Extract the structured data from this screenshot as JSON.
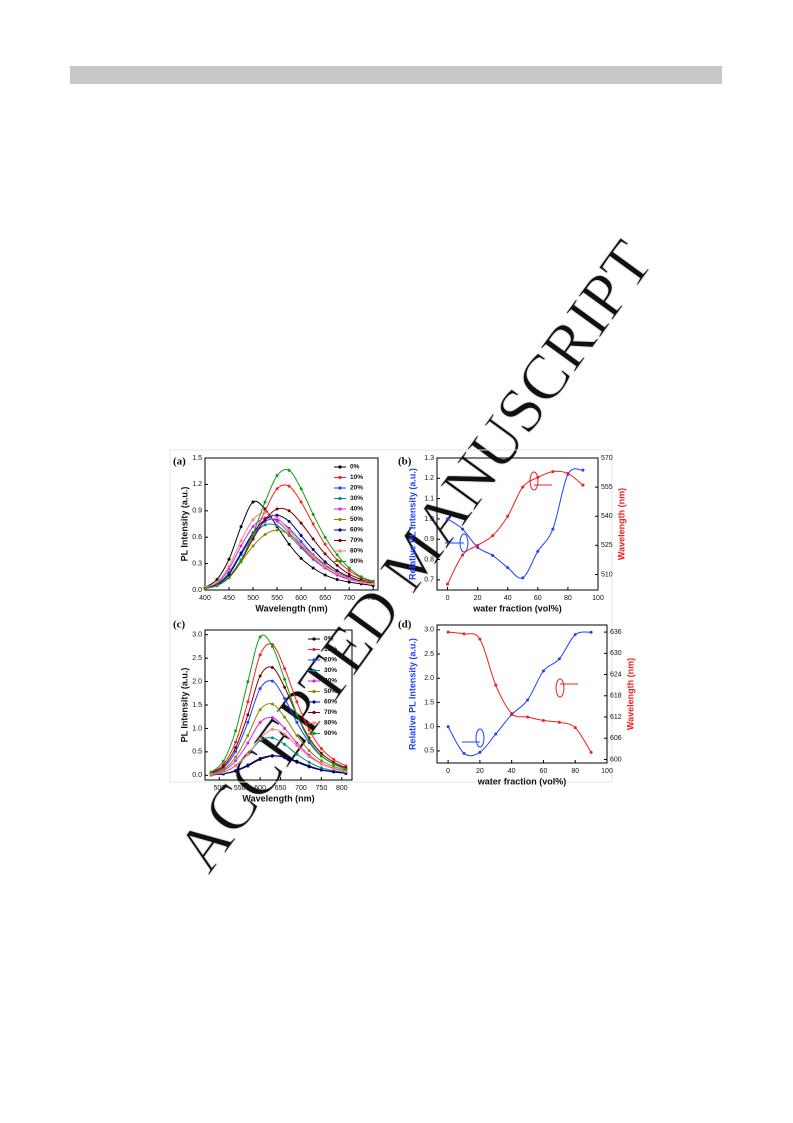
{
  "watermark": "ACCEPTED MANUSCRIPT",
  "chart_data": [
    {
      "type": "line",
      "label": "(a)",
      "x_label": "Wavelength (nm)",
      "y_label": "PL Intensity (a.u.)",
      "x": [
        400,
        425,
        450,
        475,
        500,
        525,
        550,
        575,
        600,
        625,
        650,
        675,
        700,
        725,
        750
      ],
      "xlim": [
        400,
        760
      ],
      "xticks": [
        400,
        450,
        500,
        550,
        600,
        650,
        700,
        750
      ],
      "ylim": [
        0,
        1.5
      ],
      "yticks": [
        {
          "value": 0,
          "label": "0.0"
        },
        0.3,
        0.6,
        0.9,
        1.2,
        1.5
      ],
      "series": [
        {
          "name": "0%",
          "color": "#000000",
          "values": [
            0.03,
            0.12,
            0.35,
            0.72,
            1.0,
            0.92,
            0.72,
            0.52,
            0.36,
            0.25,
            0.17,
            0.12,
            0.09,
            0.07,
            0.05
          ]
        },
        {
          "name": "10%",
          "color": "#ff2020",
          "values": [
            0.02,
            0.05,
            0.14,
            0.32,
            0.6,
            0.9,
            1.15,
            1.18,
            1.0,
            0.75,
            0.52,
            0.34,
            0.22,
            0.14,
            0.09
          ]
        },
        {
          "name": "20%",
          "color": "#1f3fff",
          "values": [
            0.02,
            0.06,
            0.18,
            0.4,
            0.62,
            0.78,
            0.8,
            0.7,
            0.55,
            0.4,
            0.28,
            0.19,
            0.13,
            0.09,
            0.07
          ]
        },
        {
          "name": "30%",
          "color": "#008b8b",
          "values": [
            0.02,
            0.07,
            0.2,
            0.42,
            0.62,
            0.74,
            0.73,
            0.62,
            0.48,
            0.35,
            0.25,
            0.17,
            0.12,
            0.09,
            0.07
          ]
        },
        {
          "name": "40%",
          "color": "#e020e0",
          "values": [
            0.03,
            0.08,
            0.24,
            0.5,
            0.72,
            0.82,
            0.78,
            0.65,
            0.5,
            0.36,
            0.25,
            0.17,
            0.12,
            0.09,
            0.07
          ]
        },
        {
          "name": "50%",
          "color": "#8b8b00",
          "values": [
            0.02,
            0.05,
            0.14,
            0.32,
            0.5,
            0.63,
            0.68,
            0.63,
            0.52,
            0.4,
            0.29,
            0.2,
            0.14,
            0.1,
            0.07
          ]
        },
        {
          "name": "60%",
          "color": "#000080",
          "values": [
            0.02,
            0.06,
            0.18,
            0.42,
            0.65,
            0.8,
            0.85,
            0.78,
            0.62,
            0.46,
            0.32,
            0.22,
            0.15,
            0.1,
            0.07
          ]
        },
        {
          "name": "70%",
          "color": "#800000",
          "values": [
            0.02,
            0.05,
            0.15,
            0.34,
            0.58,
            0.8,
            0.92,
            0.9,
            0.76,
            0.58,
            0.41,
            0.28,
            0.18,
            0.12,
            0.08
          ]
        },
        {
          "name": "80%",
          "color": "#ff7f7f",
          "values": [
            0.03,
            0.09,
            0.27,
            0.56,
            0.8,
            0.88,
            0.82,
            0.68,
            0.52,
            0.38,
            0.27,
            0.19,
            0.13,
            0.09,
            0.07
          ]
        },
        {
          "name": "90%",
          "color": "#10a010",
          "values": [
            0.02,
            0.05,
            0.14,
            0.34,
            0.64,
            1.0,
            1.3,
            1.36,
            1.15,
            0.86,
            0.6,
            0.4,
            0.25,
            0.15,
            0.1
          ]
        }
      ]
    },
    {
      "type": "line",
      "label": "(b)",
      "x_label": "water fraction (vol%)",
      "y_label": "Relative PL Intensity (a.u.)",
      "y2_label": "Wavelength (nm)",
      "x": [
        0,
        10,
        20,
        30,
        40,
        50,
        60,
        70,
        80,
        90
      ],
      "xlim": [
        -7,
        100
      ],
      "xticks": [
        0,
        20,
        40,
        60,
        80,
        100
      ],
      "ylim": [
        0.65,
        1.3
      ],
      "yticks": [
        0.7,
        0.8,
        0.9,
        {
          "value": 1,
          "label": "1.0"
        },
        1.1,
        1.2,
        1.3
      ],
      "y2lim": [
        502,
        570
      ],
      "y2ticks": [
        510,
        525,
        540,
        555,
        570
      ],
      "series": [
        {
          "color": "#1f3fff",
          "values": [
            1.0,
            0.95,
            0.86,
            0.82,
            0.76,
            0.71,
            0.84,
            0.95,
            1.22,
            1.24
          ]
        },
        {
          "color": "#ee2020",
          "axis": "y2",
          "values": [
            505,
            520,
            525,
            530,
            540,
            555,
            560,
            563,
            562,
            556
          ]
        }
      ]
    },
    {
      "type": "line",
      "label": "(c)",
      "x_label": "Wavelength (nm)",
      "y_label": "PL Intensity (a.u.)",
      "x": [
        480,
        510,
        540,
        570,
        600,
        630,
        660,
        690,
        720,
        750,
        780,
        810
      ],
      "xlim": [
        465,
        825
      ],
      "xticks": [
        500,
        550,
        600,
        650,
        700,
        750,
        800
      ],
      "ylim": [
        -0.1,
        3.1
      ],
      "yticks": [
        {
          "value": 0,
          "label": "0.0"
        },
        0.5,
        {
          "value": 1,
          "label": "1.0"
        },
        1.5,
        {
          "value": 2,
          "label": "2.0"
        },
        2.5,
        {
          "value": 3,
          "label": "3.0"
        }
      ],
      "series": [
        {
          "name": "0%",
          "color": "#000000",
          "values": [
            0.01,
            0.03,
            0.09,
            0.2,
            0.34,
            0.41,
            0.39,
            0.3,
            0.2,
            0.12,
            0.08,
            0.05
          ]
        },
        {
          "name": "10%",
          "color": "#ff2020",
          "values": [
            0.06,
            0.23,
            0.71,
            1.57,
            2.57,
            2.79,
            2.28,
            1.57,
            0.97,
            0.57,
            0.34,
            0.2
          ]
        },
        {
          "name": "20%",
          "color": "#1f3fff",
          "values": [
            0.04,
            0.16,
            0.51,
            1.13,
            1.85,
            2.01,
            1.64,
            1.13,
            0.7,
            0.41,
            0.25,
            0.14
          ]
        },
        {
          "name": "30%",
          "color": "#008b8b",
          "values": [
            0.02,
            0.07,
            0.21,
            0.45,
            0.74,
            0.8,
            0.66,
            0.45,
            0.28,
            0.16,
            0.1,
            0.06
          ]
        },
        {
          "name": "40%",
          "color": "#e020e0",
          "values": [
            0.03,
            0.1,
            0.31,
            0.69,
            1.13,
            1.23,
            1.0,
            0.69,
            0.43,
            0.25,
            0.15,
            0.09
          ]
        },
        {
          "name": "50%",
          "color": "#8b8b00",
          "values": [
            0.03,
            0.12,
            0.39,
            0.85,
            1.4,
            1.52,
            1.24,
            0.85,
            0.53,
            0.31,
            0.19,
            0.11
          ]
        },
        {
          "name": "60%",
          "color": "#000080",
          "values": [
            0.01,
            0.03,
            0.1,
            0.22,
            0.36,
            0.42,
            0.38,
            0.28,
            0.18,
            0.11,
            0.07,
            0.04
          ]
        },
        {
          "name": "70%",
          "color": "#800000",
          "values": [
            0.05,
            0.19,
            0.59,
            1.29,
            2.12,
            2.3,
            1.88,
            1.29,
            0.8,
            0.47,
            0.28,
            0.16
          ]
        },
        {
          "name": "80%",
          "color": "#ff7f7f",
          "values": [
            0.02,
            0.06,
            0.2,
            0.45,
            0.78,
            0.98,
            0.88,
            0.63,
            0.4,
            0.24,
            0.14,
            0.08
          ]
        },
        {
          "name": "90%",
          "color": "#10a010",
          "values": [
            0.07,
            0.3,
            0.95,
            2.0,
            2.95,
            2.75,
            2.05,
            1.3,
            0.75,
            0.42,
            0.24,
            0.13
          ]
        }
      ]
    },
    {
      "type": "line",
      "label": "(d)",
      "x_label": "water fraction (vol%)",
      "y_label": "Relative PL Intensity (a.u.)",
      "y2_label": "Wavelength (nm)",
      "x": [
        0,
        10,
        20,
        30,
        40,
        50,
        60,
        70,
        80,
        90
      ],
      "xlim": [
        -7,
        100
      ],
      "xticks": [
        0,
        20,
        40,
        60,
        80,
        100
      ],
      "ylim": [
        0.25,
        3.1
      ],
      "yticks": [
        0.5,
        {
          "value": 1,
          "label": "1.0"
        },
        1.5,
        {
          "value": 2,
          "label": "2.0"
        },
        2.5,
        {
          "value": 3,
          "label": "3.0"
        }
      ],
      "y2lim": [
        599,
        638
      ],
      "y2ticks": [
        600,
        606,
        612,
        618,
        624,
        630,
        636
      ],
      "series": [
        {
          "color": "#1f3fff",
          "values": [
            1.0,
            0.45,
            0.47,
            0.85,
            1.25,
            1.55,
            2.15,
            2.4,
            2.9,
            2.95
          ]
        },
        {
          "color": "#ee2020",
          "axis": "y2",
          "values": [
            636,
            635.5,
            634,
            621,
            613,
            612,
            611,
            610.5,
            609,
            602
          ]
        }
      ]
    }
  ]
}
